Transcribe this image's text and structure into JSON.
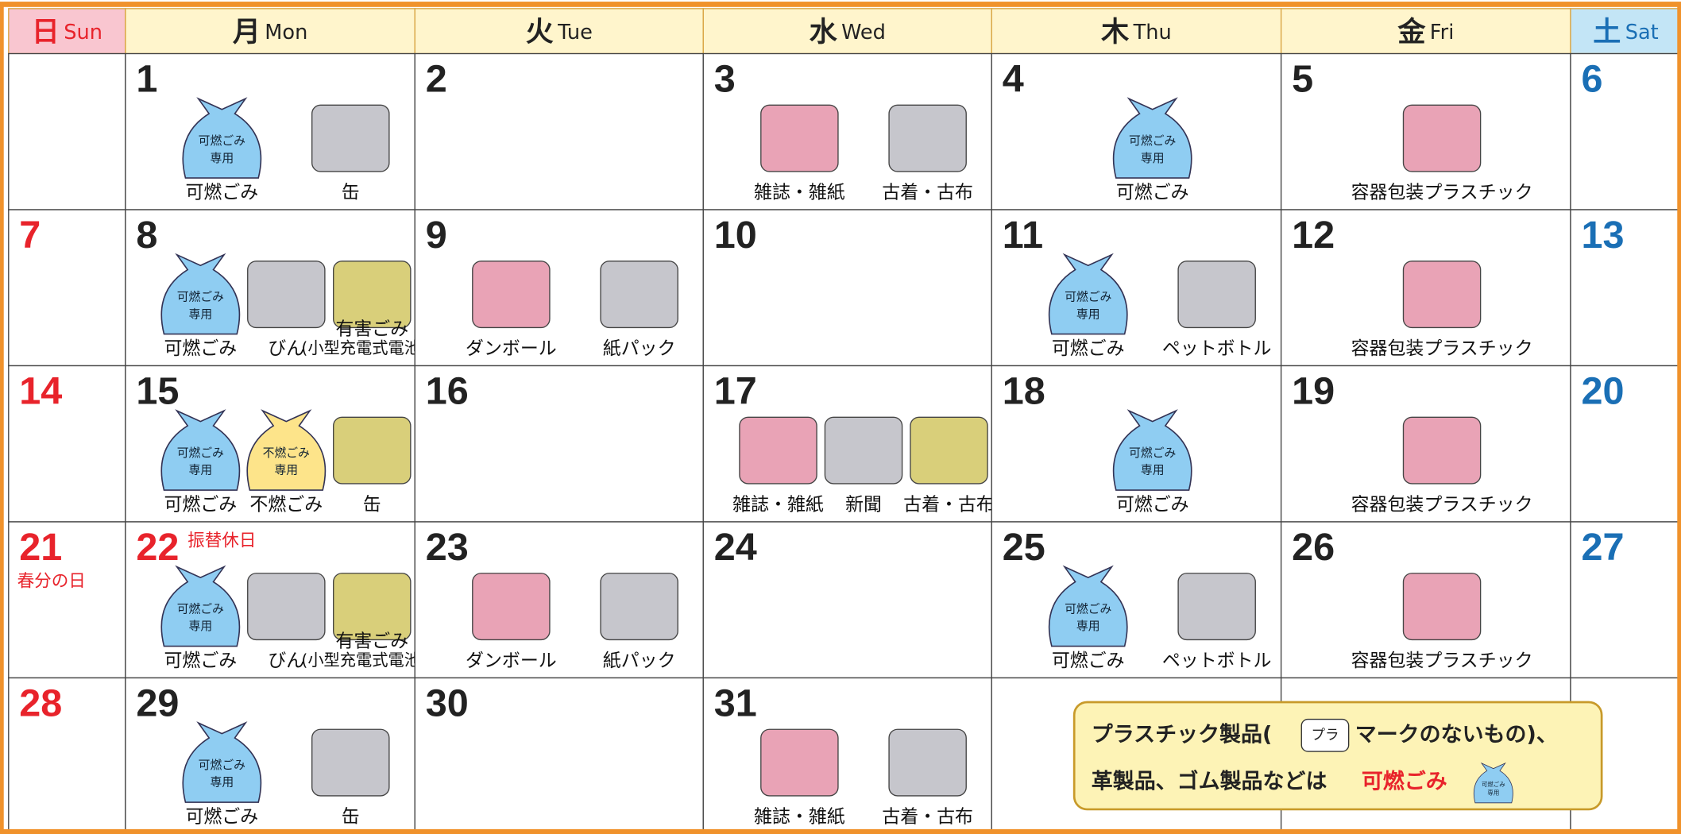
{
  "header": {
    "days": [
      {
        "kanji": "日",
        "en": "Sun"
      },
      {
        "kanji": "月",
        "en": "Mon"
      },
      {
        "kanji": "火",
        "en": "Tue"
      },
      {
        "kanji": "水",
        "en": "Wed"
      },
      {
        "kanji": "木",
        "en": "Thu"
      },
      {
        "kanji": "金",
        "en": "Fri"
      },
      {
        "kanji": "土",
        "en": "Sat"
      }
    ]
  },
  "weeks": [
    [
      null,
      {
        "day": 1,
        "items": [
          {
            "label": "可燃ごみ",
            "bag": {
              "text": [
                "可燃ごみ",
                "専用"
              ],
              "color": "#8fcdf2"
            }
          },
          {
            "label": "缶"
          }
        ]
      },
      {
        "day": 2,
        "items": []
      },
      {
        "day": 3,
        "items": [
          {
            "label": "雑誌・雑紙"
          },
          {
            "label": "古着・古布"
          }
        ]
      },
      {
        "day": 4,
        "items": [
          {
            "label": "可燃ごみ",
            "bag": {
              "text": [
                "可燃ごみ",
                "専用"
              ],
              "color": "#8fcdf2"
            }
          }
        ]
      },
      {
        "day": 5,
        "items": [
          {
            "label": "容器包装プラスチック"
          }
        ]
      },
      {
        "day": 6,
        "items": []
      }
    ],
    [
      {
        "day": 7,
        "items": []
      },
      {
        "day": 8,
        "items": [
          {
            "label": "可燃ごみ",
            "bag": {
              "text": [
                "可燃ごみ",
                "専用"
              ],
              "color": "#8fcdf2"
            }
          },
          {
            "label": "びん"
          },
          {
            "label": "有害ごみ",
            "note": "(小型充電式電池等)"
          }
        ]
      },
      {
        "day": 9,
        "items": [
          {
            "label": "ダンボール"
          },
          {
            "label": "紙パック"
          }
        ]
      },
      {
        "day": 10,
        "items": []
      },
      {
        "day": 11,
        "items": [
          {
            "label": "可燃ごみ",
            "bag": {
              "text": [
                "可燃ごみ",
                "専用"
              ],
              "color": "#8fcdf2"
            }
          },
          {
            "label": "ペットボトル"
          }
        ]
      },
      {
        "day": 12,
        "items": [
          {
            "label": "容器包装プラスチック"
          }
        ]
      },
      {
        "day": 13,
        "items": []
      }
    ],
    [
      {
        "day": 14,
        "items": []
      },
      {
        "day": 15,
        "items": [
          {
            "label": "可燃ごみ",
            "bag": {
              "text": [
                "可燃ごみ",
                "専用"
              ],
              "color": "#8fcdf2"
            }
          },
          {
            "label": "不燃ごみ",
            "bag": {
              "text": [
                "不燃ごみ",
                "専用"
              ],
              "color": "#fde48a"
            }
          },
          {
            "label": "缶"
          }
        ]
      },
      {
        "day": 16,
        "items": []
      },
      {
        "day": 17,
        "items": [
          {
            "label": "雑誌・雑紙"
          },
          {
            "label": "新聞"
          },
          {
            "label": "古着・古布"
          }
        ]
      },
      {
        "day": 18,
        "items": [
          {
            "label": "可燃ごみ",
            "bag": {
              "text": [
                "可燃ごみ",
                "専用"
              ],
              "color": "#8fcdf2"
            }
          }
        ]
      },
      {
        "day": 19,
        "items": [
          {
            "label": "容器包装プラスチック"
          }
        ]
      },
      {
        "day": 20,
        "items": []
      }
    ],
    [
      {
        "day": 21,
        "holiday": "春分の日",
        "items": []
      },
      {
        "day": 22,
        "holiday": "振替休日",
        "items": [
          {
            "label": "可燃ごみ",
            "bag": {
              "text": [
                "可燃ごみ",
                "専用"
              ],
              "color": "#8fcdf2"
            }
          },
          {
            "label": "びん"
          },
          {
            "label": "有害ごみ",
            "note": "(小型充電式電池等)"
          }
        ]
      },
      {
        "day": 23,
        "items": [
          {
            "label": "ダンボール"
          },
          {
            "label": "紙パック"
          }
        ]
      },
      {
        "day": 24,
        "items": []
      },
      {
        "day": 25,
        "items": [
          {
            "label": "可燃ごみ",
            "bag": {
              "text": [
                "可燃ごみ",
                "専用"
              ],
              "color": "#8fcdf2"
            }
          },
          {
            "label": "ペットボトル"
          }
        ]
      },
      {
        "day": 26,
        "items": [
          {
            "label": "容器包装プラスチック"
          }
        ]
      },
      {
        "day": 27,
        "items": []
      }
    ],
    [
      {
        "day": 28,
        "items": []
      },
      {
        "day": 29,
        "items": [
          {
            "label": "可燃ごみ",
            "bag": {
              "text": [
                "可燃ごみ",
                "専用"
              ],
              "color": "#8fcdf2"
            }
          },
          {
            "label": "缶"
          }
        ]
      },
      {
        "day": 30,
        "items": []
      },
      {
        "day": 31,
        "items": [
          {
            "label": "雑誌・雑紙"
          },
          {
            "label": "古着・古布"
          }
        ]
      },
      null,
      null,
      null
    ]
  ],
  "note": {
    "line1": [
      "プラスチック製品(",
      "マークのないもの)、"
    ],
    "mark": "プラ",
    "line2": "革製品、ゴム製品などは",
    "highlight": "可燃ごみ",
    "bag": [
      "可燃ごみ",
      "専用"
    ]
  }
}
